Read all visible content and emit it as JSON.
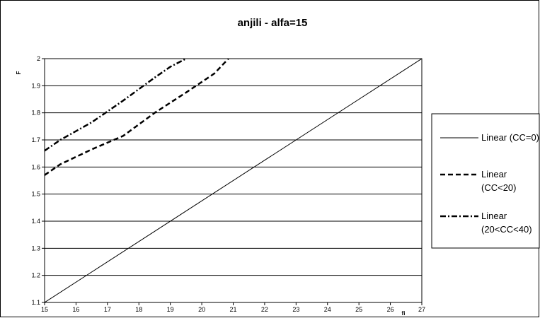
{
  "chart_data": {
    "type": "line",
    "title": "anjili - alfa=15",
    "xlabel": "fi",
    "ylabel": "F",
    "xlim": [
      15,
      27
    ],
    "ylim": [
      1.1,
      2.0
    ],
    "xticks": [
      "15",
      "16",
      "17",
      "18",
      "19",
      "20",
      "21",
      "22",
      "23",
      "24",
      "25",
      "26",
      "27"
    ],
    "yticks": [
      "1.1",
      "1.2",
      "1.3",
      "1.4",
      "1.5",
      "1.6",
      "1.7",
      "1.8",
      "1.9",
      "2"
    ],
    "grid": "horizontal",
    "legend_position": "right",
    "series": [
      {
        "name": "Linear (CC=0)",
        "legend_lines": [
          "Linear (CC=0)"
        ],
        "style": "solid",
        "x": [
          15.0,
          27.0
        ],
        "y": [
          1.1,
          2.0
        ]
      },
      {
        "name": "Linear (CC<20)",
        "legend_lines": [
          "Linear",
          "(CC<20)"
        ],
        "style": "dashed",
        "x": [
          15.0,
          15.5,
          16.5,
          17.5,
          18.5,
          19.5,
          20.4,
          20.85
        ],
        "y": [
          1.57,
          1.61,
          1.665,
          1.715,
          1.8,
          1.875,
          1.945,
          2.0
        ]
      },
      {
        "name": "Linear (20<CC<40)",
        "legend_lines": [
          "Linear",
          "(20<CC<40)"
        ],
        "style": "dashdot",
        "x": [
          15.0,
          15.5,
          16.5,
          17.5,
          18.5,
          19.0,
          19.5
        ],
        "y": [
          1.66,
          1.7,
          1.765,
          1.845,
          1.93,
          1.97,
          2.0
        ]
      }
    ]
  }
}
